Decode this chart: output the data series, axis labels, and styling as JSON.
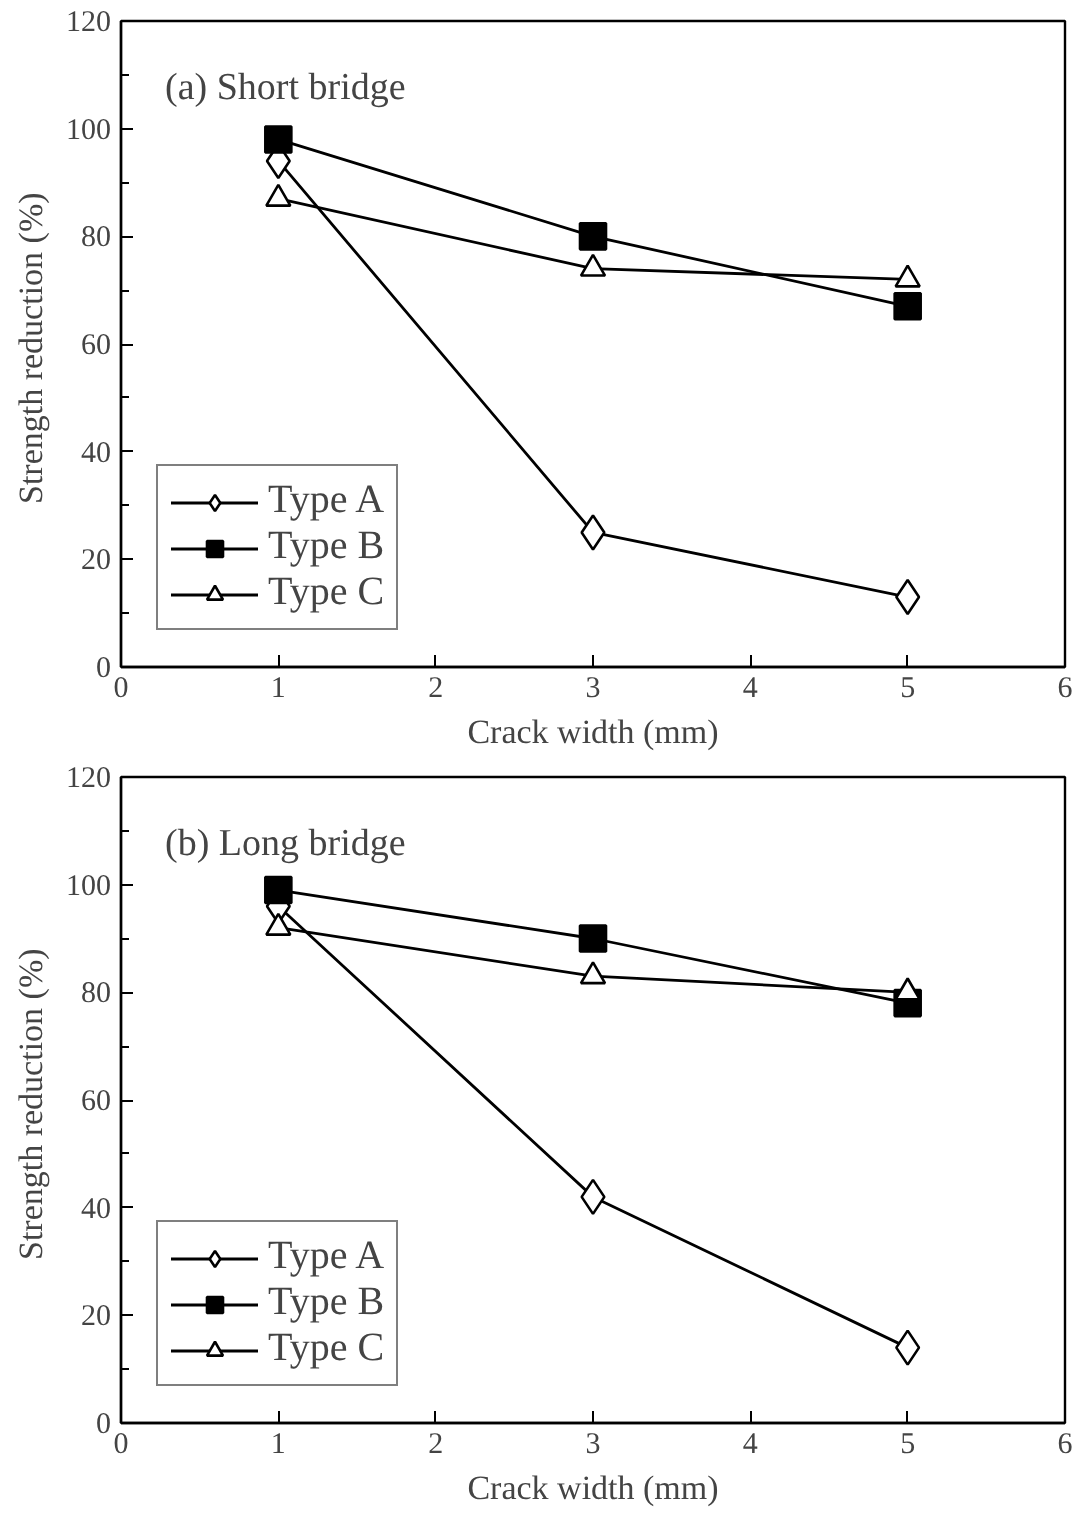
{
  "chart_data": [
    {
      "type": "line",
      "annotations": [
        "(a) Short bridge"
      ],
      "xlabel": "Crack width (mm)",
      "ylabel": "Strength reduction  (%)",
      "x": [
        1,
        3,
        5
      ],
      "series": [
        {
          "name": "Type A",
          "color": "#000000",
          "marker": "diamond",
          "values": [
            94,
            25,
            13
          ]
        },
        {
          "name": "Type B",
          "color": "#000000",
          "marker": "square",
          "values": [
            98,
            80,
            67
          ]
        },
        {
          "name": "Type C",
          "color": "#000000",
          "marker": "triangle",
          "values": [
            87,
            74,
            72
          ]
        }
      ],
      "xlim": [
        0,
        6
      ],
      "xticks": [
        0,
        1,
        2,
        3,
        4,
        5,
        6
      ],
      "ylim": [
        0,
        120
      ],
      "yticks": [
        0,
        {
          "value": 10,
          "label": null
        },
        20,
        {
          "value": 30,
          "label": null
        },
        40,
        {
          "value": 50,
          "label": null
        },
        60,
        {
          "value": 70,
          "label": null
        },
        80,
        {
          "value": 90,
          "label": null
        },
        100,
        {
          "value": 110,
          "label": null
        },
        120
      ],
      "legend": "bottom left",
      "grid": false
    },
    {
      "type": "line",
      "annotations": [
        "(b) Long bridge"
      ],
      "xlabel": "Crack width (mm)",
      "ylabel": "Strength reduction  (%)",
      "x": [
        1,
        3,
        5
      ],
      "series": [
        {
          "name": "Type A",
          "color": "#000000",
          "marker": "diamond",
          "values": [
            96,
            42,
            14
          ]
        },
        {
          "name": "Type B",
          "color": "#000000",
          "marker": "square",
          "values": [
            99,
            90,
            78
          ]
        },
        {
          "name": "Type C",
          "color": "#000000",
          "marker": "triangle",
          "values": [
            92,
            83,
            80
          ]
        }
      ],
      "xlim": [
        0,
        6
      ],
      "xticks": [
        0,
        1,
        2,
        3,
        4,
        5,
        6
      ],
      "ylim": [
        0,
        120
      ],
      "yticks": [
        0,
        {
          "value": 10,
          "label": null
        },
        20,
        {
          "value": 30,
          "label": null
        },
        40,
        {
          "value": 50,
          "label": null
        },
        60,
        {
          "value": 70,
          "label": null
        },
        80,
        {
          "value": 90,
          "label": null
        },
        100,
        {
          "value": 110,
          "label": null
        },
        120
      ],
      "legend": "bottom left",
      "grid": false
    }
  ]
}
